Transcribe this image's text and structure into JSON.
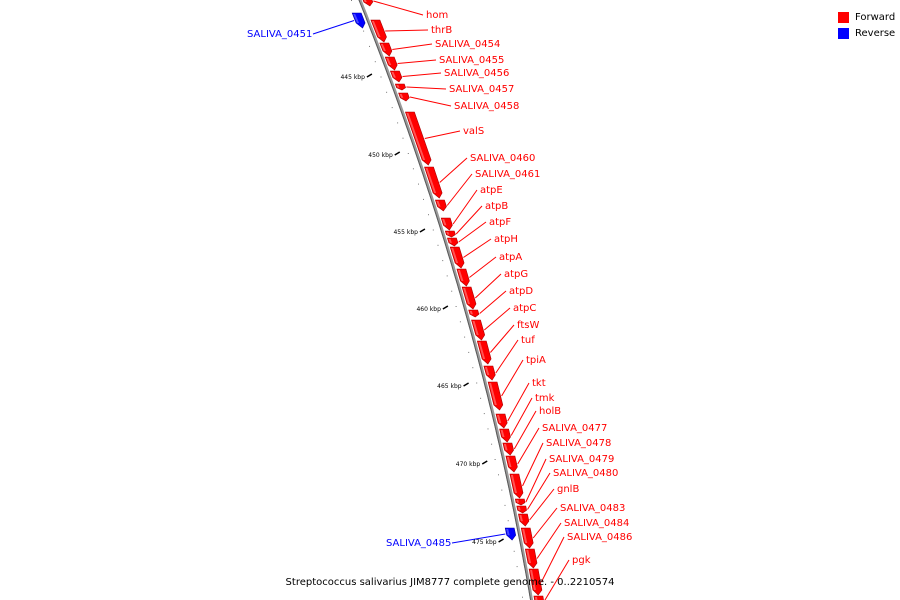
{
  "caption": "Streptococcus salivarius JIM8777 complete genome. - 0..2210574",
  "legend": [
    {
      "label": "Forward",
      "color": "#ff0000"
    },
    {
      "label": "Reverse",
      "color": "#0000ff"
    }
  ],
  "ticks": [
    "445 kbp",
    "450 kbp",
    "455 kbp",
    "460 kbp",
    "465 kbp",
    "470 kbp",
    "475 kbp"
  ],
  "genes": [
    {
      "name": "hom",
      "strand": "forward"
    },
    {
      "name": "SALIVA_0451",
      "strand": "reverse"
    },
    {
      "name": "thrB",
      "strand": "forward"
    },
    {
      "name": "SALIVA_0454",
      "strand": "forward"
    },
    {
      "name": "SALIVA_0455",
      "strand": "forward"
    },
    {
      "name": "SALIVA_0456",
      "strand": "forward"
    },
    {
      "name": "SALIVA_0457",
      "strand": "forward"
    },
    {
      "name": "SALIVA_0458",
      "strand": "forward"
    },
    {
      "name": "valS",
      "strand": "forward"
    },
    {
      "name": "SALIVA_0460",
      "strand": "forward"
    },
    {
      "name": "SALIVA_0461",
      "strand": "forward"
    },
    {
      "name": "atpE",
      "strand": "forward"
    },
    {
      "name": "atpB",
      "strand": "forward"
    },
    {
      "name": "atpF",
      "strand": "forward"
    },
    {
      "name": "atpH",
      "strand": "forward"
    },
    {
      "name": "atpA",
      "strand": "forward"
    },
    {
      "name": "atpG",
      "strand": "forward"
    },
    {
      "name": "atpD",
      "strand": "forward"
    },
    {
      "name": "atpC",
      "strand": "forward"
    },
    {
      "name": "ftsW",
      "strand": "forward"
    },
    {
      "name": "tuf",
      "strand": "forward"
    },
    {
      "name": "tpiA",
      "strand": "forward"
    },
    {
      "name": "tkt",
      "strand": "forward"
    },
    {
      "name": "tmk",
      "strand": "forward"
    },
    {
      "name": "holB",
      "strand": "forward"
    },
    {
      "name": "SALIVA_0477",
      "strand": "forward"
    },
    {
      "name": "SALIVA_0478",
      "strand": "forward"
    },
    {
      "name": "SALIVA_0479",
      "strand": "forward"
    },
    {
      "name": "SALIVA_0480",
      "strand": "forward"
    },
    {
      "name": "gnlB",
      "strand": "forward"
    },
    {
      "name": "SALIVA_0483",
      "strand": "forward"
    },
    {
      "name": "SALIVA_0484",
      "strand": "forward"
    },
    {
      "name": "SALIVA_0486",
      "strand": "forward"
    },
    {
      "name": "SALIVA_0485",
      "strand": "reverse"
    },
    {
      "name": "pgk",
      "strand": "forward"
    }
  ]
}
